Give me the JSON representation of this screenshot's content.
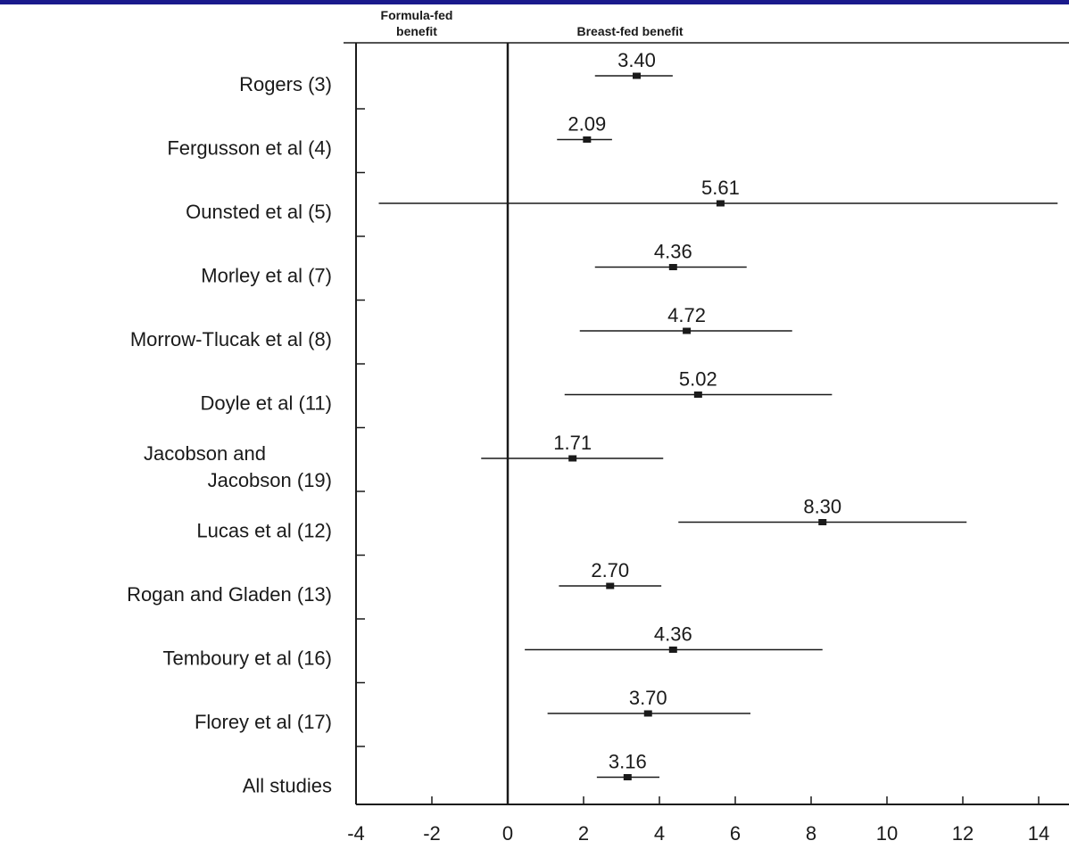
{
  "colors": {
    "frame": "#1a1a8c",
    "ink": "#1a1a1a",
    "background": "#ffffff"
  },
  "header": {
    "left_line1": "Formula-fed",
    "left_line2": "benefit",
    "right": "Breast-fed benefit"
  },
  "chart_data": {
    "type": "forest",
    "title": "",
    "xlabel": "",
    "ylabel": "",
    "xlim": [
      -4,
      14.5
    ],
    "xticks": [
      -4,
      -2,
      0,
      2,
      4,
      6,
      8,
      10,
      12,
      14
    ],
    "xtick_labels": [
      "-4",
      "-2",
      "0",
      "2",
      "4",
      "6",
      "8",
      "10",
      "12",
      "14"
    ],
    "grid": false,
    "studies": [
      {
        "label": [
          "Rogers (3)"
        ],
        "estimate": 3.4,
        "estimate_label": "3.40",
        "ci": [
          2.3,
          4.35
        ]
      },
      {
        "label": [
          "Fergusson et al  (4)"
        ],
        "estimate": 2.09,
        "estimate_label": "2.09",
        "ci": [
          1.3,
          2.75
        ]
      },
      {
        "label": [
          "Ounsted et al  (5)"
        ],
        "estimate": 5.61,
        "estimate_label": "5.61",
        "ci": [
          -3.4,
          14.5
        ]
      },
      {
        "label": [
          "Morley et al  (7)"
        ],
        "estimate": 4.36,
        "estimate_label": "4.36",
        "ci": [
          2.3,
          6.3
        ]
      },
      {
        "label": [
          "Morrow-Tlucak et al (8)"
        ],
        "estimate": 4.72,
        "estimate_label": "4.72",
        "ci": [
          1.9,
          7.5
        ]
      },
      {
        "label": [
          "Doyle et al (11)"
        ],
        "estimate": 5.02,
        "estimate_label": "5.02",
        "ci": [
          1.5,
          8.55
        ]
      },
      {
        "label": [
          "Jacobson and",
          "Jacobson (19)"
        ],
        "estimate": 1.71,
        "estimate_label": "1.71",
        "ci": [
          -0.7,
          4.1
        ]
      },
      {
        "label": [
          "Lucas et al (12)"
        ],
        "estimate": 8.3,
        "estimate_label": "8.30",
        "ci": [
          4.5,
          12.1
        ]
      },
      {
        "label": [
          "Rogan and Gladen (13)"
        ],
        "estimate": 2.7,
        "estimate_label": "2.70",
        "ci": [
          1.35,
          4.05
        ]
      },
      {
        "label": [
          "Temboury et al (16)"
        ],
        "estimate": 4.36,
        "estimate_label": "4.36",
        "ci": [
          0.45,
          8.3
        ]
      },
      {
        "label": [
          "Florey et al (17)"
        ],
        "estimate": 3.7,
        "estimate_label": "3.70",
        "ci": [
          1.05,
          6.4
        ]
      },
      {
        "label": [
          "All studies"
        ],
        "estimate": 3.16,
        "estimate_label": "3.16",
        "ci": [
          2.35,
          4.0
        ]
      }
    ]
  }
}
